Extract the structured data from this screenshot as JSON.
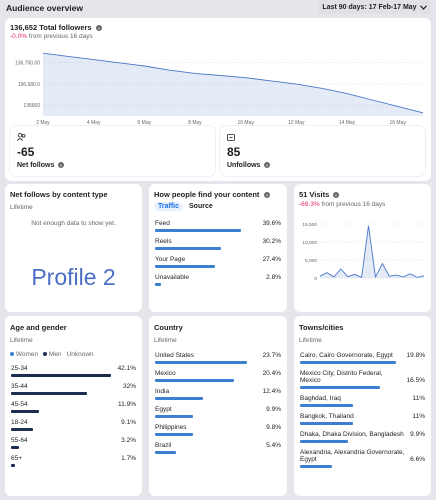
{
  "header": {
    "title": "Audience overview",
    "date_range": "Last 90 days: 17 Feb-17 May"
  },
  "followers": {
    "total": "136,652",
    "total_label": "Total followers",
    "change": "-0.0%",
    "change_text": "from previous 16 days",
    "chart": {
      "type": "line",
      "categories": [
        "2 May",
        null,
        "4 May",
        null,
        "6 May",
        null,
        "8 May",
        null,
        "10 May",
        null,
        "12 May",
        null,
        "14 May",
        null,
        "16 May",
        null
      ],
      "values": [
        136709,
        136706,
        136703,
        136700,
        136697,
        136693,
        136690,
        136688,
        136686,
        136683,
        136680,
        136676,
        136671,
        136665,
        136659,
        136653
      ],
      "ylim": [
        136650,
        136712
      ],
      "yticks": [
        {
          "value": 136700,
          "label": "136,700.00"
        },
        {
          "value": 136680,
          "label": "136,680.0"
        },
        136660
      ],
      "color": "#4a78c9"
    }
  },
  "net_follows": {
    "value": "-65",
    "label": "Net follows"
  },
  "unfollows": {
    "value": "85",
    "label": "Unfollows"
  },
  "content_type": {
    "title": "Net follows by content type",
    "period": "Lifetime",
    "message": "Not enough data to show yet.",
    "watermark": "Profile 2"
  },
  "discovery": {
    "title": "How people find your content",
    "tabs": [
      "Traffic",
      "Source"
    ],
    "categories": [
      "Feed",
      "Reels",
      "Your Page",
      "Unavailable"
    ],
    "values": [
      39.6,
      30.2,
      27.4,
      2.8
    ],
    "value_labels": [
      "39.6%",
      "30.2%",
      "27.4%",
      "2.8%"
    ],
    "color": "#3f7fd1"
  },
  "visits": {
    "title": "51 Visits",
    "change": "-69.3%",
    "change_text": "from previous 16 days",
    "chart": {
      "type": "line",
      "values": [
        500,
        1500,
        300,
        2500,
        400,
        1000,
        200,
        14500,
        300,
        4000,
        500,
        800,
        300,
        1200,
        200,
        600
      ],
      "ylim": [
        0,
        15000
      ],
      "yticks": [
        {
          "value": 15000,
          "label": "15,000"
        },
        {
          "value": 10000,
          "label": "10,000"
        },
        {
          "value": 5000,
          "label": "5,000"
        },
        0
      ],
      "color": "#4a78c9"
    }
  },
  "age_gender": {
    "title": "Age and gender",
    "period": "Lifetime",
    "legend": [
      "Women",
      "Men",
      "Unknown"
    ],
    "categories": [
      "25-34",
      "35-44",
      "45-54",
      "18-24",
      "55-64",
      "65+"
    ],
    "values": [
      42.1,
      32,
      11.9,
      9.1,
      3.2,
      1.7
    ],
    "value_labels": [
      "42.1%",
      "32%",
      "11.9%",
      "9.1%",
      "3.2%",
      "1.7%"
    ],
    "color": "#1d2d50"
  },
  "country": {
    "title": "Country",
    "period": "Lifetime",
    "categories": [
      "United States",
      "Mexico",
      "India",
      "Egypt",
      "Philippines",
      "Brazil"
    ],
    "values": [
      23.7,
      20.4,
      12.4,
      9.9,
      9.8,
      5.4
    ],
    "value_labels": [
      "23.7%",
      "20.4%",
      "12.4%",
      "9.9%",
      "9.8%",
      "5.4%"
    ],
    "color": "#3f7fd1"
  },
  "towns": {
    "title": "Towns/cities",
    "period": "Lifetime",
    "categories": [
      "Cairo, Cairo Governorate, Egypt",
      "Mexico City, Distrito Federal, Mexico",
      "Baghdad, Iraq",
      "Bangkok, Thailand",
      "Dhaka, Dhaka Division, Bangladesh",
      "Alexandria, Alexandria Governorate, Egypt"
    ],
    "values": [
      19.8,
      16.5,
      11,
      11,
      9.9,
      6.6
    ],
    "value_labels": [
      "19.8%",
      "16.5%",
      "11%",
      "11%",
      "9.9%",
      "6.6%"
    ],
    "color": "#3f7fd1"
  }
}
